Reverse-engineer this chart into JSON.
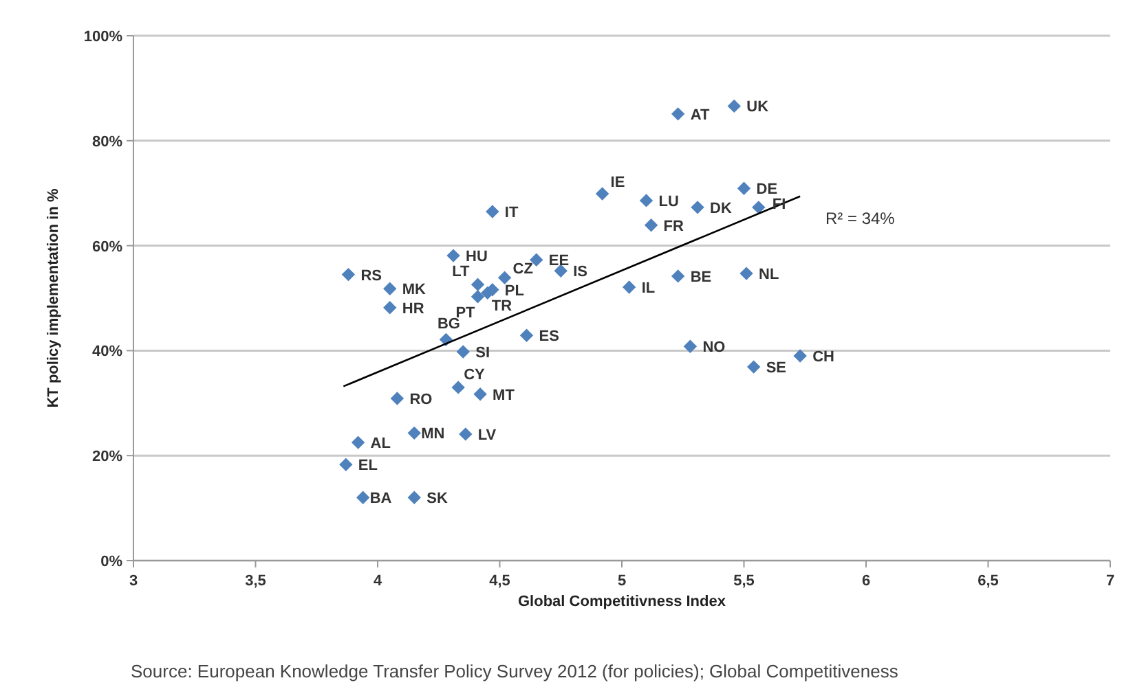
{
  "chart_data": {
    "type": "scatter",
    "xlabel": "Global Competitivness Index",
    "ylabel": "KT policy implementation in %",
    "xlim": [
      3,
      7
    ],
    "xticks": [
      3,
      {
        "value": 3.5,
        "label": "3,5"
      },
      4,
      {
        "value": 4.5,
        "label": "4,5"
      },
      5,
      {
        "value": 5.5,
        "label": "5,5"
      },
      6,
      {
        "value": 6.5,
        "label": "6,5"
      },
      7
    ],
    "ylim": [
      0,
      100
    ],
    "yticks": [
      {
        "value": 0,
        "label": "0%"
      },
      {
        "value": 20,
        "label": "20%"
      },
      {
        "value": 40,
        "label": "40%"
      },
      {
        "value": 60,
        "label": "60%"
      },
      {
        "value": 80,
        "label": "80%"
      },
      {
        "value": 100,
        "label": "100%"
      }
    ],
    "grid": "y",
    "marker": "diamond",
    "series": [
      {
        "color": "#4f81bd",
        "x": [
          5.46,
          5.23,
          4.92,
          5.1,
          5.5,
          5.31,
          5.56,
          5.12,
          4.47,
          4.31,
          4.65,
          3.88,
          4.52,
          4.75,
          4.41,
          4.05,
          4.47,
          4.45,
          4.41,
          4.05,
          5.03,
          5.23,
          5.51,
          4.28,
          4.61,
          4.35,
          5.28,
          5.73,
          5.54,
          4.33,
          4.42,
          4.08,
          4.15,
          4.36,
          3.92,
          3.87,
          3.94,
          4.15
        ],
        "values": [
          86.6,
          85.1,
          69.9,
          68.6,
          70.9,
          67.3,
          67.3,
          63.9,
          66.5,
          58.1,
          57.3,
          54.5,
          53.9,
          55.2,
          52.6,
          51.8,
          51.6,
          51.0,
          50.3,
          48.2,
          52.1,
          54.2,
          54.7,
          42.1,
          42.9,
          39.8,
          40.8,
          39.0,
          36.9,
          33.0,
          31.7,
          30.9,
          24.3,
          24.1,
          22.5,
          18.3,
          12.0,
          12.0
        ]
      },
      {
        "type": "line",
        "color": "#000000",
        "marker": "none",
        "x": [
          3.86,
          5.73
        ],
        "values": [
          33.2,
          69.4
        ]
      }
    ],
    "annotations": [
      {
        "text": "UK",
        "x": 5.46,
        "y": 86.6
      },
      {
        "text": "AT",
        "x": 5.23,
        "y": 85.1
      },
      {
        "text": "IE",
        "x": 4.92,
        "y": 69.9
      },
      {
        "text": "LU",
        "x": 5.1,
        "y": 68.6
      },
      {
        "text": "DE",
        "x": 5.5,
        "y": 70.9
      },
      {
        "text": "DK",
        "x": 5.31,
        "y": 67.3
      },
      {
        "text": "FI",
        "x": 5.56,
        "y": 67.3
      },
      {
        "text": "FR",
        "x": 5.12,
        "y": 63.9
      },
      {
        "text": "IT",
        "x": 4.47,
        "y": 66.5
      },
      {
        "text": "HU",
        "x": 4.31,
        "y": 58.1
      },
      {
        "text": "EE",
        "x": 4.65,
        "y": 57.3
      },
      {
        "text": "RS",
        "x": 3.88,
        "y": 54.5
      },
      {
        "text": "CZ",
        "x": 4.52,
        "y": 53.9
      },
      {
        "text": "IS",
        "x": 4.75,
        "y": 55.2
      },
      {
        "text": "LT",
        "x": 4.41,
        "y": 52.6
      },
      {
        "text": "MK",
        "x": 4.05,
        "y": 51.8
      },
      {
        "text": "PL",
        "x": 4.47,
        "y": 51.6
      },
      {
        "text": "TR",
        "x": 4.45,
        "y": 51.0
      },
      {
        "text": "PT",
        "x": 4.41,
        "y": 50.3
      },
      {
        "text": "HR",
        "x": 4.05,
        "y": 48.2
      },
      {
        "text": "IL",
        "x": 5.03,
        "y": 52.1
      },
      {
        "text": "BE",
        "x": 5.23,
        "y": 54.2
      },
      {
        "text": "NL",
        "x": 5.51,
        "y": 54.7
      },
      {
        "text": "BG",
        "x": 4.28,
        "y": 42.1
      },
      {
        "text": "ES",
        "x": 4.61,
        "y": 42.9
      },
      {
        "text": "SI",
        "x": 4.35,
        "y": 39.8
      },
      {
        "text": "NO",
        "x": 5.28,
        "y": 40.8
      },
      {
        "text": "CH",
        "x": 5.73,
        "y": 39.0
      },
      {
        "text": "SE",
        "x": 5.54,
        "y": 36.9
      },
      {
        "text": "CY",
        "x": 4.33,
        "y": 33.0
      },
      {
        "text": "MT",
        "x": 4.42,
        "y": 31.7
      },
      {
        "text": "RO",
        "x": 4.08,
        "y": 30.9
      },
      {
        "text": "MN",
        "x": 4.15,
        "y": 24.3
      },
      {
        "text": "LV",
        "x": 4.36,
        "y": 24.1
      },
      {
        "text": "AL",
        "x": 3.92,
        "y": 22.5
      },
      {
        "text": "EL",
        "x": 3.87,
        "y": 18.3
      },
      {
        "text": "BA",
        "x": 3.94,
        "y": 12.0
      },
      {
        "text": "SK",
        "x": 4.15,
        "y": 12.0
      },
      "R² = 34%",
      "Source: European Knowledge Transfer Policy Survey 2012 (for policies); Global Competitiveness"
    ]
  }
}
